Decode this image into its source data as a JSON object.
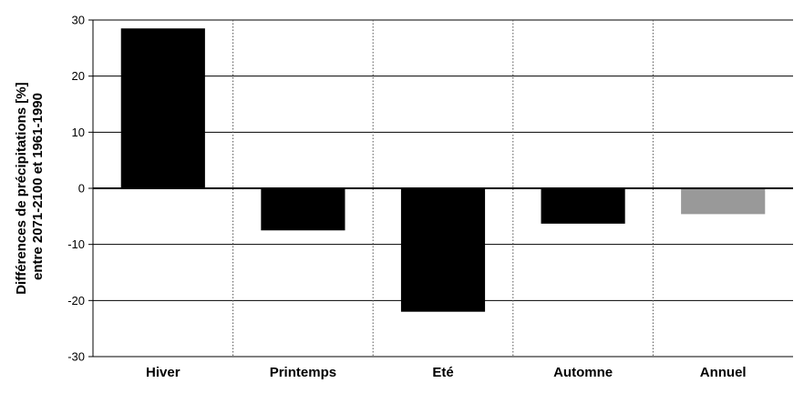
{
  "chart_data": {
    "type": "bar",
    "ylabel_line1": "Différences de précipitations [%]",
    "ylabel_line2": "entre 2071-2100 et 1961-1990",
    "categories": [
      "Hiver",
      "Printemps",
      "Eté",
      "Automne",
      "Annuel"
    ],
    "values": [
      28.5,
      -7.5,
      -22.0,
      -6.3,
      -4.6
    ],
    "bar_colors": [
      "#000000",
      "#000000",
      "#000000",
      "#000000",
      "#999999"
    ],
    "ylim": [
      -30,
      30
    ],
    "yticks": [
      30,
      20,
      10,
      0,
      -10,
      -20,
      -30
    ],
    "grid": true,
    "legend": "none"
  }
}
